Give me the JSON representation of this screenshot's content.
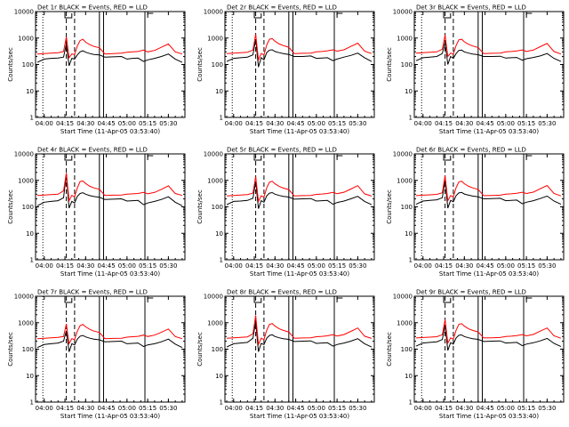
{
  "chart_data": {
    "type": "line",
    "common": {
      "xlabel": "Start Time (11-Apr-05 03:53:40)",
      "ylabel": "Counts/sec",
      "x_ticks": [
        "04:00",
        "04:15",
        "04:30",
        "04:45",
        "05:00",
        "05:15",
        "05:30"
      ],
      "x_tick_minutes": [
        0,
        15,
        30,
        45,
        60,
        75,
        90
      ],
      "x_minutes_from_04_00": [
        -6.3,
        102.0
      ],
      "y_scale": "log",
      "ylim": [
        1,
        10000
      ],
      "y_ticks": [
        "1",
        "10",
        "100",
        "1000",
        "10000"
      ],
      "markers": {
        "dotted": [
          -1
        ],
        "dashed": [
          16,
          22
        ],
        "solid": [
          40,
          43,
          73
        ],
        "pulse_bar_1": [
          15,
          20
        ],
        "pulse_bar_2": [
          75,
          79
        ]
      },
      "x_sample_minutes": [
        -5,
        0,
        5,
        10,
        14,
        16,
        18,
        20,
        22,
        24,
        26,
        28,
        30,
        33,
        36,
        40,
        44,
        50,
        56,
        60,
        64,
        68,
        72,
        75,
        80,
        85,
        90,
        95,
        100
      ]
    },
    "panels": [
      {
        "title": "Det 1r BLACK = Events, RED = LLD",
        "series": [
          {
            "color": "#000000",
            "values": [
              120,
              160,
              170,
              175,
              190,
              600,
              90,
              170,
              160,
              230,
              300,
              330,
              290,
              260,
              240,
              230,
              190,
              195,
              200,
              160,
              170,
              175,
              130,
              150,
              170,
              200,
              250,
              160,
              120
            ]
          },
          {
            "color": "#ff0000",
            "values": [
              250,
              260,
              270,
              280,
              310,
              1100,
              180,
              250,
              240,
              500,
              800,
              900,
              700,
              560,
              480,
              430,
              250,
              260,
              270,
              290,
              300,
              310,
              350,
              300,
              340,
              450,
              600,
              300,
              250
            ]
          }
        ]
      },
      {
        "title": "Det 2r BLACK = Events, RED = LLD",
        "series": [
          {
            "color": "#000000",
            "values": [
              130,
              170,
              180,
              190,
              230,
              900,
              80,
              180,
              150,
              280,
              350,
              360,
              310,
              280,
              260,
              240,
              200,
              200,
              210,
              170,
              175,
              180,
              140,
              160,
              190,
              220,
              270,
              180,
              130
            ]
          },
          {
            "color": "#ff0000",
            "values": [
              260,
              270,
              280,
              290,
              350,
              1400,
              150,
              260,
              230,
              550,
              900,
              950,
              760,
              600,
              520,
              450,
              260,
              265,
              270,
              300,
              310,
              330,
              360,
              320,
              360,
              480,
              640,
              320,
              260
            ]
          }
        ]
      },
      {
        "title": "Det 3r BLACK = Events, RED = LLD",
        "series": [
          {
            "color": "#000000",
            "values": [
              140,
              180,
              190,
              200,
              260,
              700,
              100,
              200,
              170,
              260,
              340,
              350,
              300,
              270,
              250,
              235,
              200,
              200,
              205,
              175,
              180,
              185,
              145,
              165,
              185,
              210,
              260,
              170,
              130
            ]
          },
          {
            "color": "#ff0000",
            "values": [
              270,
              280,
              290,
              300,
              380,
              1300,
              200,
              270,
              250,
              520,
              850,
              900,
              720,
              580,
              500,
              440,
              260,
              265,
              270,
              300,
              310,
              325,
              355,
              310,
              350,
              470,
              620,
              310,
              250
            ]
          }
        ]
      },
      {
        "title": "Det 4r BLACK = Events, RED = LLD",
        "series": [
          {
            "color": "#000000",
            "values": [
              110,
              150,
              160,
              170,
              220,
              1700,
              90,
              160,
              140,
              250,
              320,
              340,
              300,
              265,
              245,
              230,
              190,
              195,
              200,
              165,
              170,
              175,
              120,
              140,
              160,
              190,
              240,
              150,
              110
            ]
          },
          {
            "color": "#ff0000",
            "values": [
              270,
              280,
              290,
              300,
              400,
              1900,
              170,
              270,
              240,
              520,
              900,
              950,
              760,
              600,
              520,
              460,
              270,
              275,
              280,
              300,
              310,
              320,
              350,
              310,
              350,
              460,
              620,
              320,
              270
            ]
          }
        ]
      },
      {
        "title": "Det 5r BLACK = Events, RED = LLD",
        "series": [
          {
            "color": "#000000",
            "values": [
              120,
              160,
              165,
              175,
              210,
              900,
              85,
              170,
              150,
              260,
              330,
              345,
              300,
              270,
              250,
              235,
              195,
              200,
              205,
              165,
              170,
              175,
              125,
              145,
              165,
              200,
              250,
              160,
              120
            ]
          },
          {
            "color": "#ff0000",
            "values": [
              260,
              270,
              280,
              290,
              330,
              1400,
              160,
              260,
              235,
              520,
              850,
              920,
              740,
              590,
              510,
              450,
              260,
              265,
              270,
              295,
              305,
              320,
              350,
              315,
              355,
              470,
              630,
              310,
              255
            ]
          }
        ]
      },
      {
        "title": "Det 6r BLACK = Events, RED = LLD",
        "series": [
          {
            "color": "#000000",
            "values": [
              125,
              165,
              175,
              185,
              220,
              1000,
              90,
              175,
              155,
              265,
              335,
              350,
              305,
              275,
              255,
              240,
              200,
              205,
              210,
              170,
              175,
              180,
              130,
              150,
              170,
              205,
              255,
              165,
              125
            ]
          },
          {
            "color": "#ff0000",
            "values": [
              265,
              275,
              285,
              295,
              340,
              1500,
              170,
              265,
              240,
              530,
              870,
              930,
              750,
              600,
              520,
              455,
              265,
              270,
              275,
              300,
              310,
              325,
              355,
              320,
              360,
              480,
              640,
              320,
              260
            ]
          }
        ]
      },
      {
        "title": "Det 7r BLACK = Events, RED = LLD",
        "series": [
          {
            "color": "#000000",
            "values": [
              115,
              150,
              160,
              170,
              200,
              500,
              80,
              160,
              145,
              240,
              310,
              330,
              290,
              260,
              240,
              225,
              190,
              195,
              200,
              160,
              165,
              170,
              125,
              145,
              160,
              190,
              240,
              155,
              115
            ]
          },
          {
            "color": "#ff0000",
            "values": [
              250,
              260,
              270,
              280,
              300,
              900,
              160,
              250,
              230,
              480,
              780,
              860,
              700,
              560,
              480,
              430,
              250,
              255,
              260,
              285,
              295,
              305,
              340,
              300,
              340,
              440,
              580,
              300,
              250
            ]
          }
        ]
      },
      {
        "title": "Det 8r BLACK = Events, RED = LLD",
        "series": [
          {
            "color": "#000000",
            "values": [
              120,
              160,
              170,
              180,
              260,
              1100,
              80,
              165,
              150,
              260,
              330,
              350,
              300,
              270,
              250,
              235,
              195,
              200,
              205,
              165,
              170,
              175,
              130,
              150,
              170,
              200,
              250,
              160,
              120
            ]
          },
          {
            "color": "#ff0000",
            "values": [
              260,
              270,
              280,
              290,
              380,
              1900,
              150,
              260,
              230,
              520,
              860,
              930,
              740,
              590,
              510,
              450,
              260,
              265,
              270,
              295,
              305,
              320,
              350,
              315,
              355,
              470,
              630,
              310,
              255
            ]
          }
        ]
      },
      {
        "title": "Det 9r BLACK = Events, RED = LLD",
        "series": [
          {
            "color": "#000000",
            "values": [
              130,
              170,
              180,
              190,
              230,
              800,
              90,
              175,
              155,
              265,
              335,
              345,
              300,
              270,
              250,
              235,
              195,
              200,
              205,
              170,
              175,
              180,
              135,
              155,
              175,
              205,
              255,
              165,
              125
            ]
          },
          {
            "color": "#ff0000",
            "values": [
              265,
              275,
              285,
              295,
              350,
              1300,
              170,
              265,
              240,
              520,
              860,
              920,
              740,
              590,
              510,
              450,
              265,
              270,
              275,
              300,
              310,
              325,
              355,
              320,
              360,
              480,
              630,
              320,
              260
            ]
          }
        ]
      }
    ]
  }
}
